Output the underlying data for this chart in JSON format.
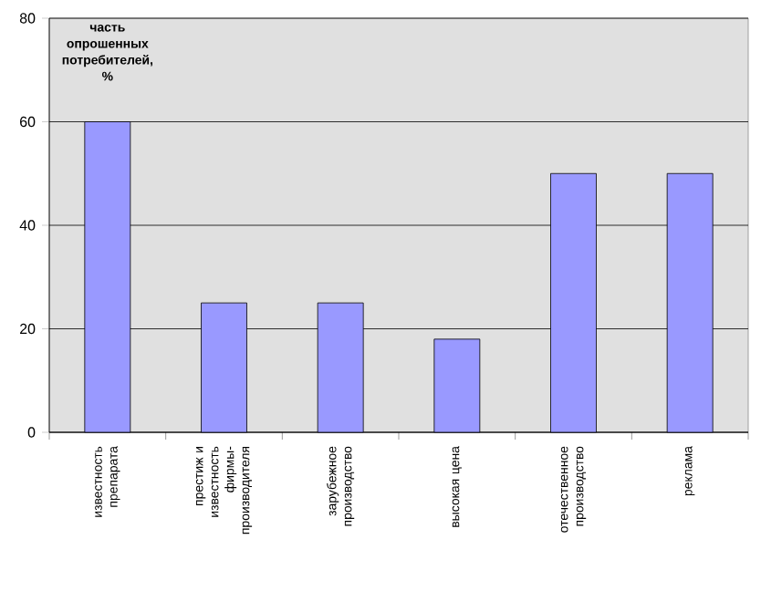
{
  "chart_data": {
    "type": "bar",
    "ylabel": "часть опрошенных потребителей, %",
    "categories": [
      "известность препарата",
      "престиж и известность фирмы-производителя",
      "зарубежное производство",
      "высокая цена",
      "отечественное производство",
      "реклама"
    ],
    "values": [
      60,
      25,
      25,
      18,
      50,
      50
    ],
    "color": "#9999ff",
    "ylim": [
      0,
      80
    ],
    "yticks": [
      0,
      20,
      40,
      60,
      80
    ],
    "grid": "y"
  }
}
